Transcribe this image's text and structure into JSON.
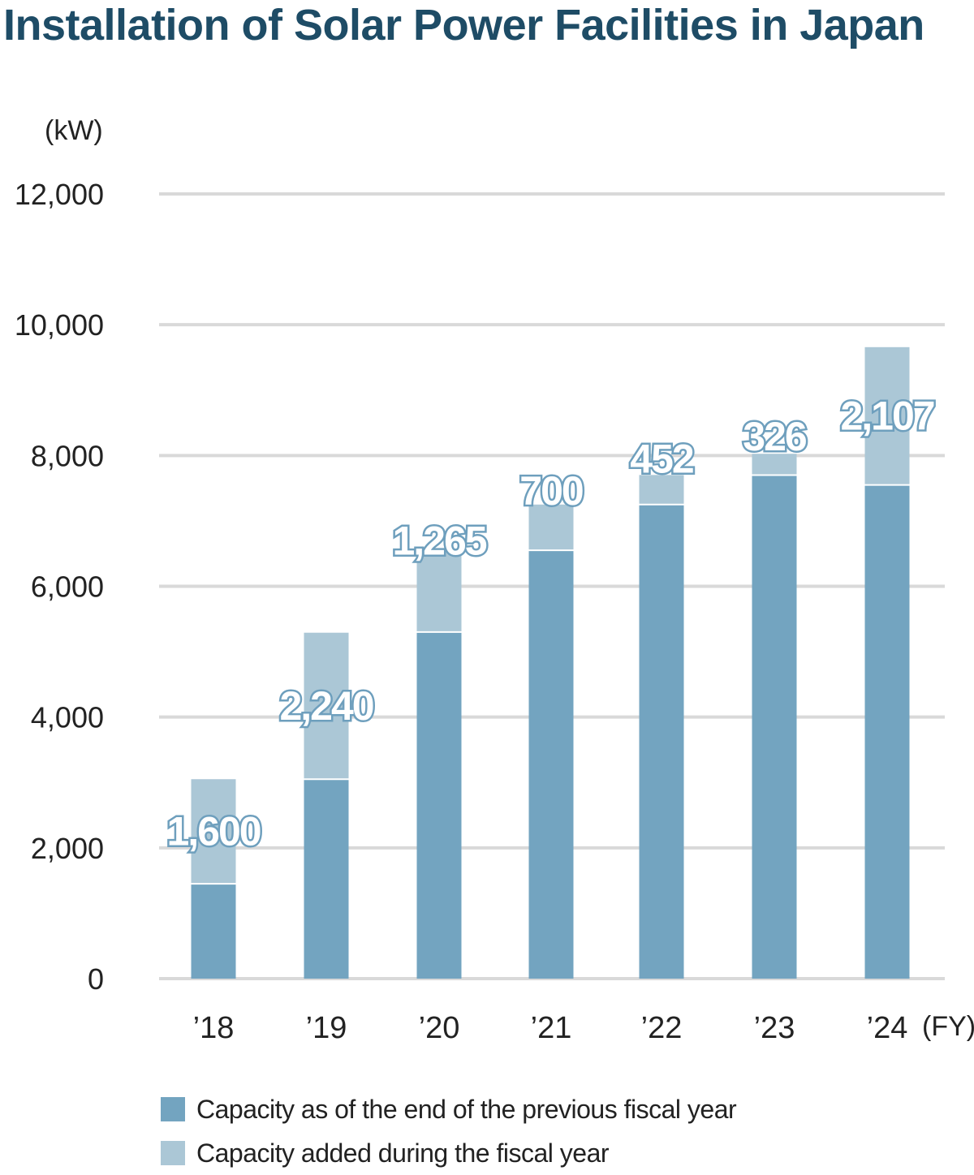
{
  "title": "Installation of Solar Power Facilities in Japan",
  "colors": {
    "previous": "#73a4c0",
    "added": "#abc7d6",
    "title": "#1e4c66",
    "grid": "#d9d9d9"
  },
  "chart_data": {
    "type": "bar",
    "stacked": true,
    "title": "Installation of Solar Power Facilities in Japan",
    "ylabel": "(kW)",
    "xlabel": "(FY)",
    "ylim": [
      0,
      12000
    ],
    "yticks": [
      0,
      2000,
      4000,
      6000,
      8000,
      10000,
      12000
    ],
    "ytick_labels": [
      "0",
      "2,000",
      "4,000",
      "6,000",
      "8,000",
      "10,000",
      "12,000"
    ],
    "categories": [
      "’18",
      "’19",
      "’20",
      "’21",
      "’22",
      "’23",
      "’24"
    ],
    "grid": true,
    "legend_position": "bottom",
    "series": [
      {
        "name": "Capacity as of the end of the previous fiscal year",
        "values": [
          1450,
          3050,
          5300,
          6550,
          7250,
          7700,
          7550
        ]
      },
      {
        "name": "Capacity added during the fiscal year",
        "values": [
          1600,
          2240,
          1265,
          700,
          452,
          326,
          2107
        ]
      }
    ],
    "data_labels": [
      "1,600",
      "2,240",
      "1,265",
      "700",
      "452",
      "326",
      "2,107"
    ]
  }
}
